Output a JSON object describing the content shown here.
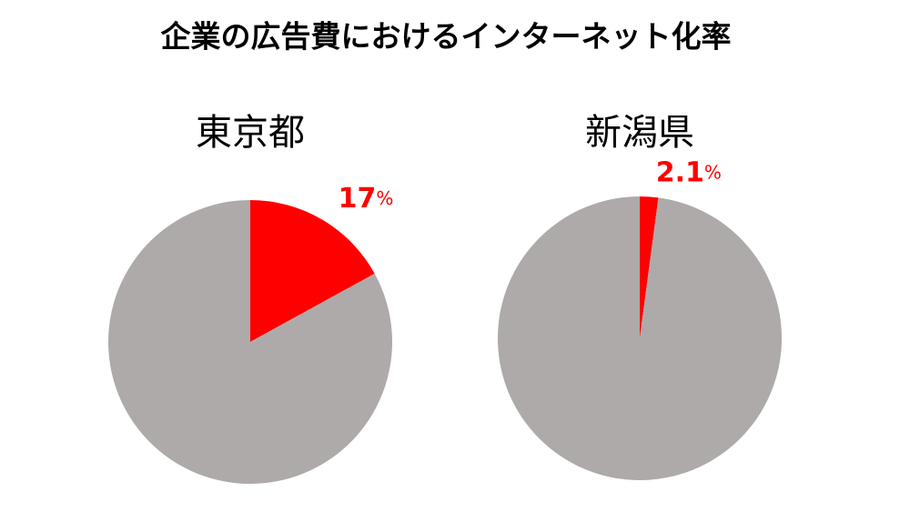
{
  "title": "企業の広告費におけるインターネット化率",
  "chart_data": [
    {
      "type": "pie",
      "title": "東京都",
      "values": [
        17,
        83
      ],
      "value_labels": [
        "17%",
        null
      ],
      "colors": [
        "#ff0000",
        "#aeaaaa"
      ]
    },
    {
      "type": "pie",
      "title": "新潟県",
      "values": [
        2.1,
        97.9
      ],
      "value_labels": [
        "2.1%",
        null
      ],
      "colors": [
        "#ff0000",
        "#aeaaaa"
      ]
    }
  ]
}
